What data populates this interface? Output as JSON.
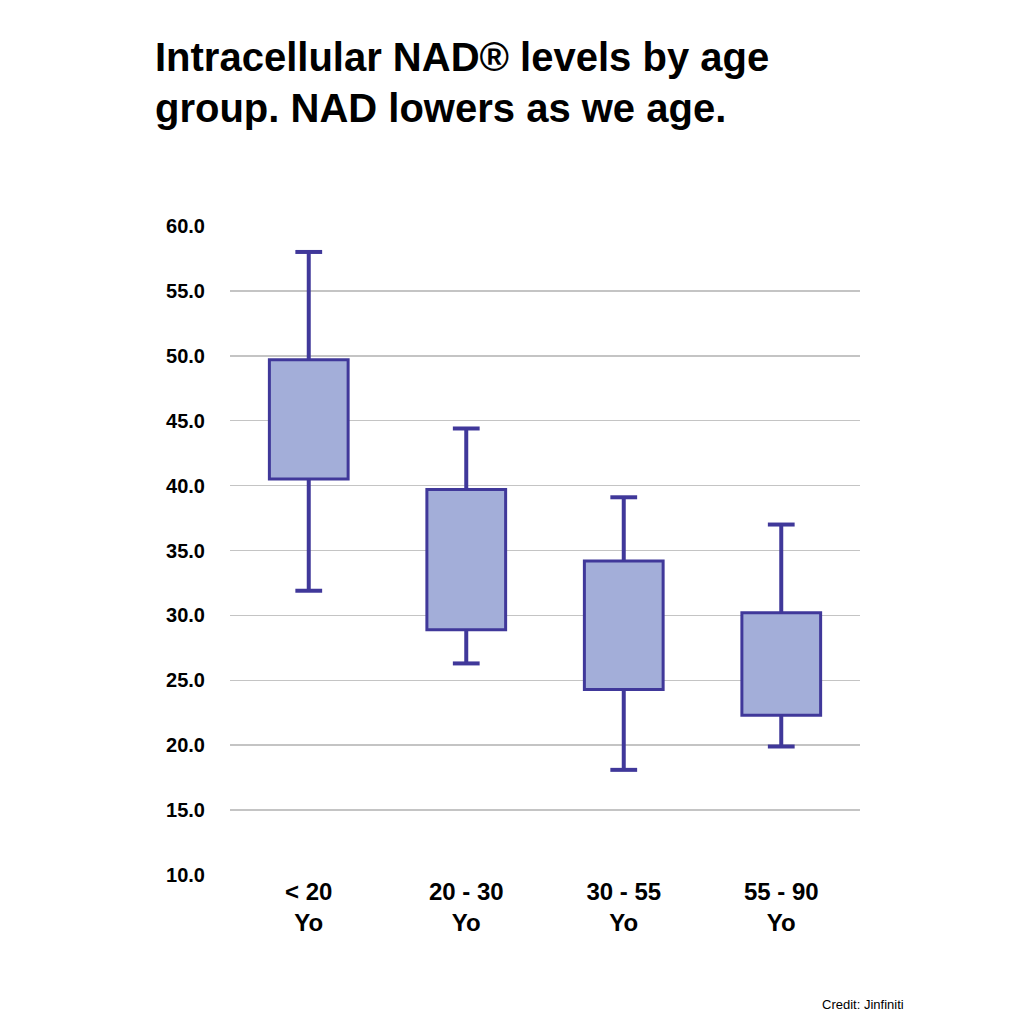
{
  "chart_data": {
    "type": "box",
    "title": "Intracellular NAD® levels by age group. NAD lowers as we age.",
    "categories": [
      "< 20\nYo",
      "20 - 30\nYo",
      "30 - 55\nYo",
      "55 - 90\nYo"
    ],
    "min": [
      31.9,
      26.3,
      18.1,
      19.9
    ],
    "q1": [
      40.5,
      28.9,
      24.3,
      22.3
    ],
    "q3": [
      49.7,
      39.7,
      34.2,
      30.2
    ],
    "max": [
      58.0,
      44.4,
      39.1,
      37.0
    ],
    "color": "#a3aed9",
    "ylim": [
      10,
      60
    ],
    "yticks": [
      {
        "value": 10,
        "label": "10.0"
      },
      {
        "value": 15,
        "label": "15.0"
      },
      {
        "value": 20,
        "label": "20.0"
      },
      {
        "value": 25,
        "label": "25.0"
      },
      {
        "value": 30,
        "label": "30.0"
      },
      {
        "value": 35,
        "label": "35.0"
      },
      {
        "value": 40,
        "label": "40.0"
      },
      {
        "value": 45,
        "label": "45.0"
      },
      {
        "value": 50,
        "label": "50.0"
      },
      {
        "value": 55,
        "label": "55.0"
      },
      {
        "value": 60,
        "label": "60.0"
      }
    ],
    "grid": true,
    "annotations": [
      "Credit: Jinfiniti"
    ]
  }
}
